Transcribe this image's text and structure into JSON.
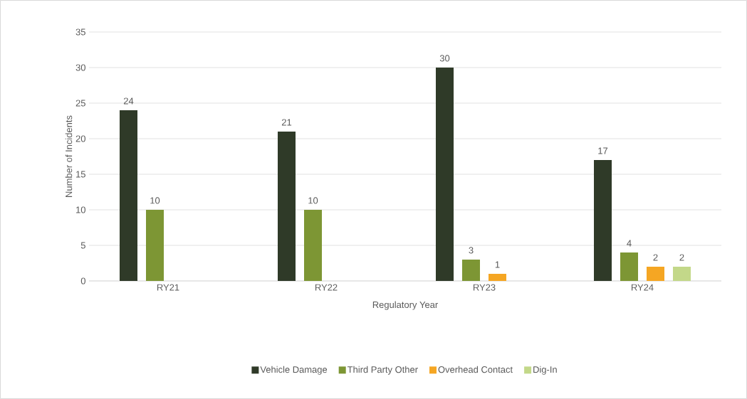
{
  "chart_data": {
    "type": "bar",
    "xlabel": "Regulatory Year",
    "ylabel": "Number of Incidents",
    "categories": [
      "RY21",
      "RY22",
      "RY23",
      "RY24"
    ],
    "series": [
      {
        "name": "Vehicle Damage",
        "color": "#2f3a28",
        "values": [
          24,
          21,
          30,
          17
        ]
      },
      {
        "name": "Third Party Other",
        "color": "#7d9634",
        "values": [
          10,
          10,
          3,
          4
        ]
      },
      {
        "name": "Overhead Contact",
        "color": "#f5a623",
        "values": [
          null,
          null,
          1,
          2
        ]
      },
      {
        "name": "Dig-In",
        "color": "#c3d889",
        "values": [
          null,
          null,
          null,
          2
        ]
      }
    ],
    "ylim": [
      0,
      35
    ],
    "yticks": [
      0,
      5,
      10,
      15,
      20,
      25,
      30,
      35
    ],
    "grid": "y",
    "legend": "bottom",
    "data_labels": true
  }
}
